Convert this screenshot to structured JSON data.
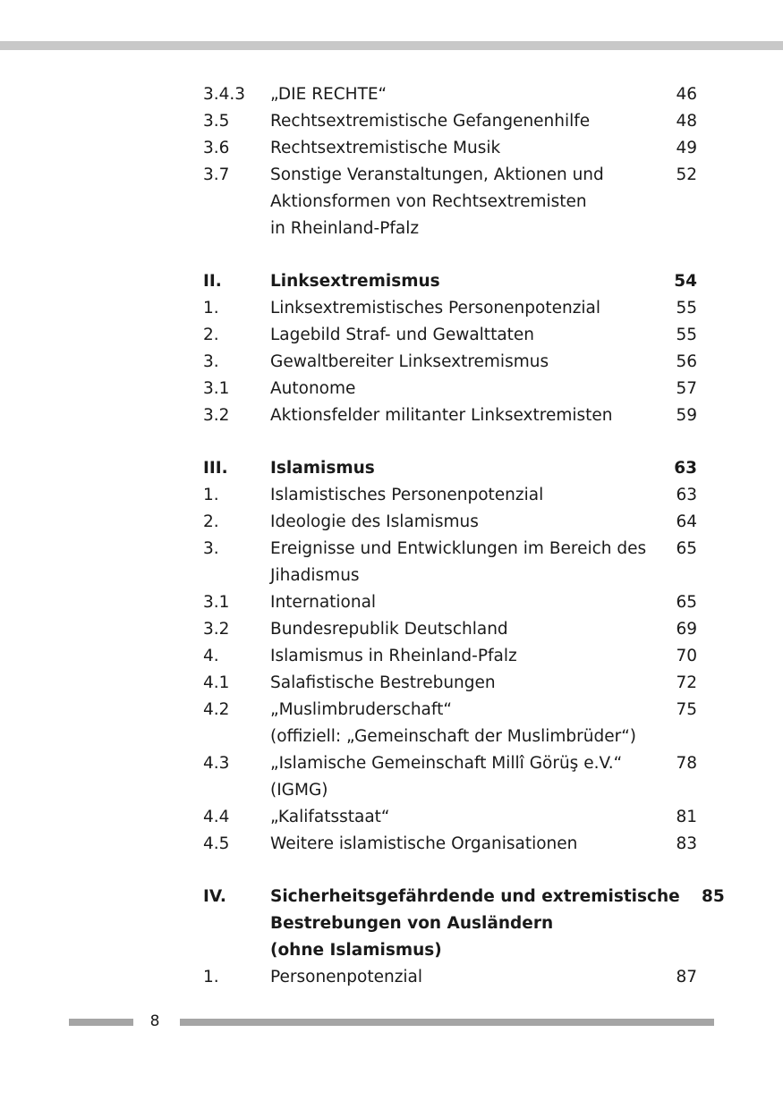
{
  "toc": [
    {
      "entries": [
        {
          "num": "3.4.3",
          "title": [
            "„DIE RECHTE“"
          ],
          "page": "46"
        },
        {
          "num": "3.5",
          "title": [
            "Rechtsextremistische Gefangenenhilfe"
          ],
          "page": "48"
        },
        {
          "num": "3.6",
          "title": [
            "Rechtsextremistische Musik"
          ],
          "page": "49"
        },
        {
          "num": "3.7",
          "title": [
            "Sonstige Veranstaltungen, Aktionen und",
            "Aktionsformen von Rechtsextremisten",
            "in Rheinland-Pfalz"
          ],
          "page": "52"
        }
      ]
    },
    {
      "entries": [
        {
          "num": "II.",
          "title": [
            "Linksextremismus"
          ],
          "page": "54",
          "bold": true
        },
        {
          "num": "1.",
          "title": [
            "Linksextremistisches Personenpotenzial"
          ],
          "page": "55"
        },
        {
          "num": "2.",
          "title": [
            "Lagebild Straf- und Gewalttaten"
          ],
          "page": "55"
        },
        {
          "num": "3.",
          "title": [
            "Gewaltbereiter Linksextremismus"
          ],
          "page": "56"
        },
        {
          "num": "3.1",
          "title": [
            "Autonome"
          ],
          "page": "57"
        },
        {
          "num": "3.2",
          "title": [
            "Aktionsfelder militanter Linksextremisten"
          ],
          "page": "59"
        }
      ]
    },
    {
      "entries": [
        {
          "num": "III.",
          "title": [
            "Islamismus"
          ],
          "page": "63",
          "bold": true
        },
        {
          "num": "1.",
          "title": [
            "Islamistisches Personenpotenzial"
          ],
          "page": "63"
        },
        {
          "num": "2.",
          "title": [
            "Ideologie des Islamismus"
          ],
          "page": "64"
        },
        {
          "num": "3.",
          "title": [
            "Ereignisse und Entwicklungen im Bereich des",
            "Jihadismus"
          ],
          "page": "65"
        },
        {
          "num": "3.1",
          "title": [
            "International"
          ],
          "page": "65"
        },
        {
          "num": "3.2",
          "title": [
            "Bundesrepublik Deutschland"
          ],
          "page": "69"
        },
        {
          "num": "4.",
          "title": [
            "Islamismus in Rheinland-Pfalz"
          ],
          "page": "70"
        },
        {
          "num": "4.1",
          "title": [
            "Salafistische Bestrebungen"
          ],
          "page": "72"
        },
        {
          "num": "4.2",
          "title": [
            "„Muslimbruderschaft“",
            "(offiziell: „Gemeinschaft der Muslimbrüder“)"
          ],
          "page": "75"
        },
        {
          "num": "4.3",
          "title": [
            "„Islamische Gemeinschaft Millî Görüş e.V.“",
            "(IGMG)"
          ],
          "page": "78"
        },
        {
          "num": "4.4",
          "title": [
            "„Kalifatsstaat“"
          ],
          "page": "81"
        },
        {
          "num": "4.5",
          "title": [
            "Weitere islamistische Organisationen"
          ],
          "page": "83"
        }
      ]
    },
    {
      "entries": [
        {
          "num": "IV.",
          "title": [
            "Sicherheitsgefährdende und extremistische",
            "Bestrebungen von Ausländern",
            "(ohne Islamismus)"
          ],
          "page": "85",
          "bold": true
        },
        {
          "num": "1.",
          "title": [
            "Personenpotenzial"
          ],
          "page": "87"
        }
      ]
    }
  ],
  "footer": {
    "page_number": "8"
  },
  "colors": {
    "top_bar": "#c8c8c8",
    "footer_bar": "#a5a5a5"
  }
}
